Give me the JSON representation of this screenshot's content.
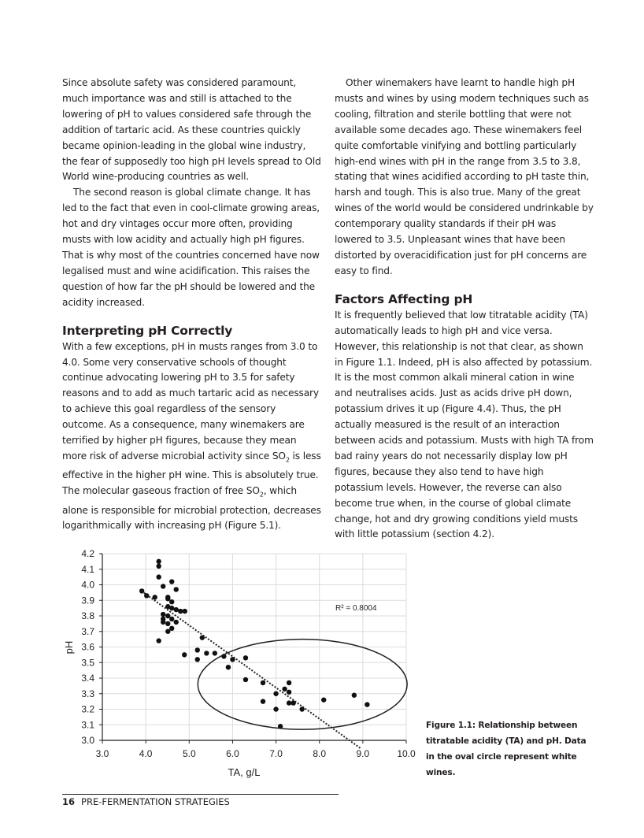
{
  "left_column": {
    "p1": "Since absolute safety was considered paramount, much importance was and still is attached to the lowering of pH to values considered safe through the addition of tartaric acid. As these countries quickly became opinion-leading in the global wine industry, the fear of supposedly too high pH levels spread to Old World wine-producing countries as well.",
    "p2": "The second reason is global climate change. It has led to the fact that even in cool-climate growing areas, hot and dry vintages occur more often, providing musts with low acidity and actually high pH figures. That is why most of the countries concerned have now legalised must and wine acidification. This raises the question of how far the pH should be lowered and the acidity increased.",
    "heading": "Interpreting pH Correctly",
    "p3a": "With a few exceptions, pH in musts ranges from 3.0 to 4.0. Some very conservative schools of thought continue advocating lowering pH to 3.5 for safety reasons and to add as much tartaric acid as necessary to achieve this goal regardless of the sensory outcome. As a consequence, many winemakers are terrified by higher pH figures, because they mean more risk of adverse microbial activity since SO",
    "p3b": " is less effective in the higher pH wine. This is absolutely true. The molecular gaseous fraction of free SO",
    "p3c": ", which alone is responsible for microbial protection, decreases logarithmically with increasing pH (Figure 5.1).",
    "sub2": "2"
  },
  "right_column": {
    "p1": "Other winemakers have learnt to handle high pH musts and wines by using modern techniques such as cooling, filtration and sterile bottling that were not available some decades ago. These winemakers feel quite comfortable vinifying and bottling particularly high-end wines with pH in the range from 3.5 to 3.8, stating that wines acidified according to pH taste thin, harsh and tough. This is also true. Many of the great wines of the world would be considered undrinkable by contemporary quality standards if their pH was lowered to 3.5. Unpleasant wines that have been distorted by overacidification just for pH concerns are easy to find.",
    "heading": "Factors Affecting pH",
    "p2": "It is frequently believed that low titratable acidity (TA) automatically leads to high pH and vice versa. However, this relationship is not that clear, as shown in Figure 1.1. Indeed, pH is also affected by potassium. It is the most common alkali mineral cation in wine and neutralises acids. Just as acids drive pH down, potassium drives it up (Figure 4.4). Thus, the pH actually measured is the result of an interaction between acids and potassium. Musts with high TA from bad rainy years do not necessarily display low pH figures, because they also tend to have high potassium levels. However, the reverse can also become true when, in the course of global climate change, hot and dry growing conditions yield musts with little potassium (section 4.2)."
  },
  "caption": "Figure 1.1: Relationship between titratable acidity (TA) and pH. Data in the oval circle represent white wines.",
  "footer": {
    "page_number": "16",
    "section": "PRE-FERMENTATION STRATEGIES"
  },
  "chart_data": {
    "type": "scatter",
    "xlabel": "TA, g/L",
    "ylabel": "pH",
    "xlim": [
      3.0,
      10.0
    ],
    "ylim": [
      3.0,
      4.2
    ],
    "x_ticks": [
      "3.0",
      "4.0",
      "5.0",
      "6.0",
      "7.0",
      "8.0",
      "9.0",
      "10.0"
    ],
    "y_ticks": [
      "3.0",
      "3.1",
      "3.2",
      "3.3",
      "3.4",
      "3.5",
      "3.6",
      "3.7",
      "3.8",
      "3.9",
      "4.0",
      "4.1",
      "4.2"
    ],
    "grid": true,
    "trendline": {
      "type": "linear",
      "label": "R² = 0.8004",
      "from": [
        3.9,
        3.96
      ],
      "to": [
        8.94,
        2.95
      ]
    },
    "oval_annotation": {
      "center": [
        7.61,
        3.36
      ],
      "radius": [
        2.41,
        0.29
      ],
      "meaning": "white wines"
    },
    "points": [
      [
        3.91,
        3.96
      ],
      [
        4.02,
        3.93
      ],
      [
        4.21,
        3.92
      ],
      [
        4.3,
        4.15
      ],
      [
        4.3,
        4.12
      ],
      [
        4.3,
        4.05
      ],
      [
        4.4,
        3.99
      ],
      [
        4.6,
        4.02
      ],
      [
        4.7,
        3.97
      ],
      [
        4.51,
        3.92
      ],
      [
        4.51,
        3.91
      ],
      [
        4.6,
        3.89
      ],
      [
        4.51,
        3.86
      ],
      [
        4.6,
        3.85
      ],
      [
        4.7,
        3.84
      ],
      [
        4.8,
        3.83
      ],
      [
        4.9,
        3.83
      ],
      [
        4.4,
        3.81
      ],
      [
        4.51,
        3.8
      ],
      [
        4.4,
        3.78
      ],
      [
        4.6,
        3.78
      ],
      [
        4.4,
        3.76
      ],
      [
        4.7,
        3.76
      ],
      [
        4.51,
        3.75
      ],
      [
        4.6,
        3.72
      ],
      [
        4.51,
        3.7
      ],
      [
        4.3,
        3.64
      ],
      [
        4.89,
        3.55
      ],
      [
        5.3,
        3.66
      ],
      [
        5.19,
        3.58
      ],
      [
        5.19,
        3.52
      ],
      [
        5.4,
        3.56
      ],
      [
        5.59,
        3.56
      ],
      [
        5.8,
        3.54
      ],
      [
        6.0,
        3.52
      ],
      [
        5.9,
        3.47
      ],
      [
        6.3,
        3.53
      ],
      [
        6.3,
        3.39
      ],
      [
        6.7,
        3.37
      ],
      [
        6.7,
        3.25
      ],
      [
        7.0,
        3.3
      ],
      [
        7.0,
        3.2
      ],
      [
        7.1,
        3.09
      ],
      [
        7.2,
        3.33
      ],
      [
        7.3,
        3.37
      ],
      [
        7.3,
        3.31
      ],
      [
        7.3,
        3.24
      ],
      [
        7.4,
        3.24
      ],
      [
        7.6,
        3.2
      ],
      [
        8.1,
        3.26
      ],
      [
        8.8,
        3.29
      ],
      [
        9.1,
        3.23
      ]
    ]
  }
}
